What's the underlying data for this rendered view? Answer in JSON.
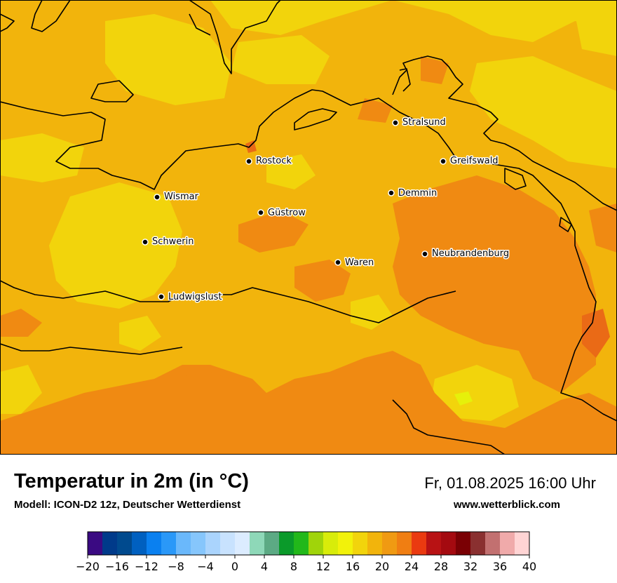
{
  "title": "Temperatur in 2m (in °C)",
  "subtitle": "Modell: ICON-D2 12z, Deutscher Wetterdienst",
  "datetime": "Fr, 01.08.2025 16:00 Uhr",
  "website": "www.wetterblick.com",
  "colors": {
    "base": "#f2b40c",
    "warm": "#f08a12",
    "hot": "#ea6a16",
    "cool": "#f2d40c",
    "cooler": "#e6f00a",
    "coast": "#000000"
  },
  "cities": [
    {
      "name": "Stralsund"
    },
    {
      "name": "Rostock"
    },
    {
      "name": "Greifswald"
    },
    {
      "name": "Wismar"
    },
    {
      "name": "Demmin"
    },
    {
      "name": "Güstrow"
    },
    {
      "name": "Schwerin"
    },
    {
      "name": "Neubrandenburg"
    },
    {
      "name": "Waren"
    },
    {
      "name": "Ludwigslust"
    }
  ],
  "legend": {
    "min": -20,
    "max": 40,
    "step": 2,
    "tick_labels": [
      "−20",
      "−16",
      "−12",
      "−8",
      "−4",
      "0",
      "4",
      "8",
      "12",
      "16",
      "20",
      "24",
      "28",
      "32",
      "36",
      "40"
    ],
    "colors": [
      "#3a0a82",
      "#003a8a",
      "#004a8e",
      "#0060c0",
      "#0a80f0",
      "#2a98f8",
      "#6ab8fb",
      "#86c6fc",
      "#aad4fd",
      "#c8e2fe",
      "#dcecff",
      "#8ed8b8",
      "#5caa84",
      "#0a9a2a",
      "#22b81a",
      "#a0d40a",
      "#d8ec0a",
      "#f2f20a",
      "#f2d40c",
      "#f2b40c",
      "#f09a12",
      "#f07e12",
      "#ea3a10",
      "#b81214",
      "#a40a10",
      "#7a0004",
      "#8a3030",
      "#c27070",
      "#f0aaaa",
      "#ffd4d4"
    ]
  }
}
